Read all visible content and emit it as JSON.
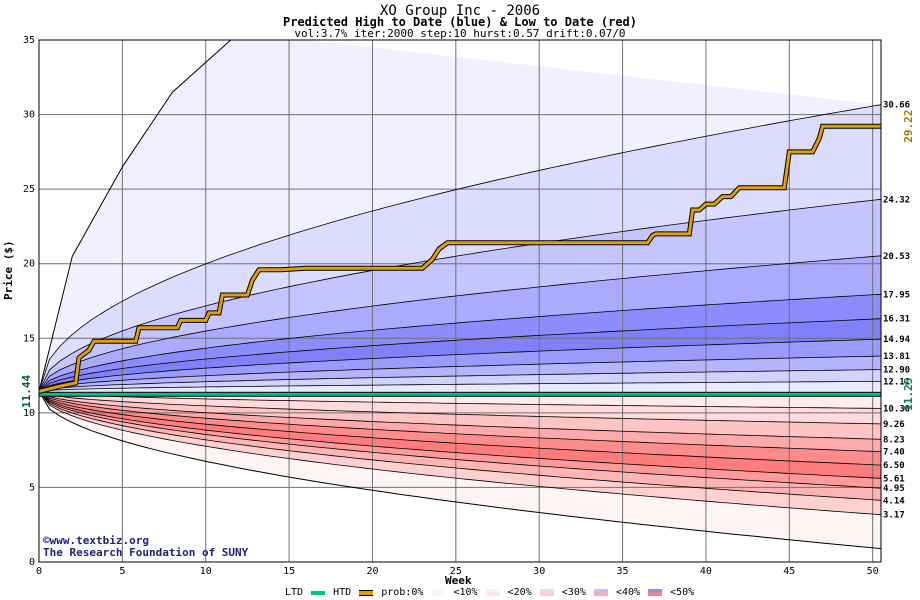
{
  "chart_data": {
    "type": "area",
    "title": "XO Group Inc - 2006",
    "subtitle": "Predicted High to Date (blue) &  Low to Date (red)",
    "params": "vol:3.7% iter:2000 step:10 hurst:0.57 drift:0.07/0",
    "xlabel": "Week",
    "ylabel": "Price ($)",
    "xlim": [
      0,
      50.5
    ],
    "ylim": [
      0,
      35
    ],
    "xticks": [
      0,
      5,
      10,
      15,
      20,
      25,
      30,
      35,
      40,
      45,
      50
    ],
    "yticks": [
      0,
      5,
      10,
      15,
      20,
      25,
      30,
      35
    ],
    "grid": true,
    "start_price": 11.44,
    "current_low_label": "11.25",
    "current_high_label": "29.22",
    "high_quantiles": [
      "30.66",
      "24.32",
      "20.53",
      "17.95",
      "16.31",
      "14.94",
      "13.81",
      "12.90",
      "12.11"
    ],
    "low_quantiles": [
      "10.30",
      "9.26",
      "8.23",
      "7.40",
      "6.50",
      "5.61",
      "4.95",
      "4.14",
      "3.17"
    ],
    "high_quantile_values": [
      30.66,
      24.32,
      20.53,
      17.95,
      16.31,
      14.94,
      13.81,
      12.9,
      12.11
    ],
    "low_quantile_values": [
      10.3,
      9.26,
      8.23,
      7.4,
      6.5,
      5.61,
      4.95,
      4.14,
      3.17
    ],
    "outer_high_curve": {
      "x": [
        0,
        2,
        5,
        8,
        12
      ],
      "y": [
        11.44,
        20.5,
        26.5,
        31.5,
        35.5
      ]
    },
    "outer_low_value": 0.9,
    "htd_path": {
      "x": [
        0,
        1.3,
        2.2,
        2.4,
        3.0,
        3.3,
        5.8,
        6.0,
        8.3,
        8.5,
        10.0,
        10.2,
        10.8,
        11.0,
        12.5,
        12.8,
        13.2,
        14.5,
        16.0,
        17.0,
        23.0,
        23.6,
        24.0,
        24.5,
        30.0,
        36.5,
        36.8,
        37.0,
        39.0,
        39.2,
        39.6,
        40.0,
        40.5,
        41.0,
        41.5,
        42.0,
        44.7,
        45.0,
        46.4,
        46.8,
        47.0,
        50.5
      ],
      "y": [
        11.44,
        11.8,
        12.0,
        13.7,
        14.2,
        14.8,
        14.8,
        15.7,
        15.7,
        16.2,
        16.2,
        16.7,
        16.7,
        17.9,
        17.9,
        18.9,
        19.6,
        19.6,
        19.7,
        19.7,
        19.7,
        20.3,
        21.0,
        21.4,
        21.4,
        21.4,
        21.9,
        22.0,
        22.0,
        23.6,
        23.6,
        24.0,
        24.0,
        24.5,
        24.5,
        25.1,
        25.1,
        27.5,
        27.5,
        28.4,
        29.22,
        29.22
      ]
    },
    "ltd_value": 11.25,
    "series": [
      {
        "name": "LTD",
        "color": "#00c090"
      },
      {
        "name": "HTD",
        "color": "#e0a000"
      }
    ],
    "legend": {
      "placement": "bottom",
      "ltd": "LTD",
      "htd": "HTD",
      "prob": "prob:0%",
      "items": [
        "<10%",
        "<20%",
        "<30%",
        "<40%",
        "<50%"
      ]
    },
    "credit_line1": "©www.textbiz.org",
    "credit_line2": "The Research Foundation of SUNY"
  }
}
